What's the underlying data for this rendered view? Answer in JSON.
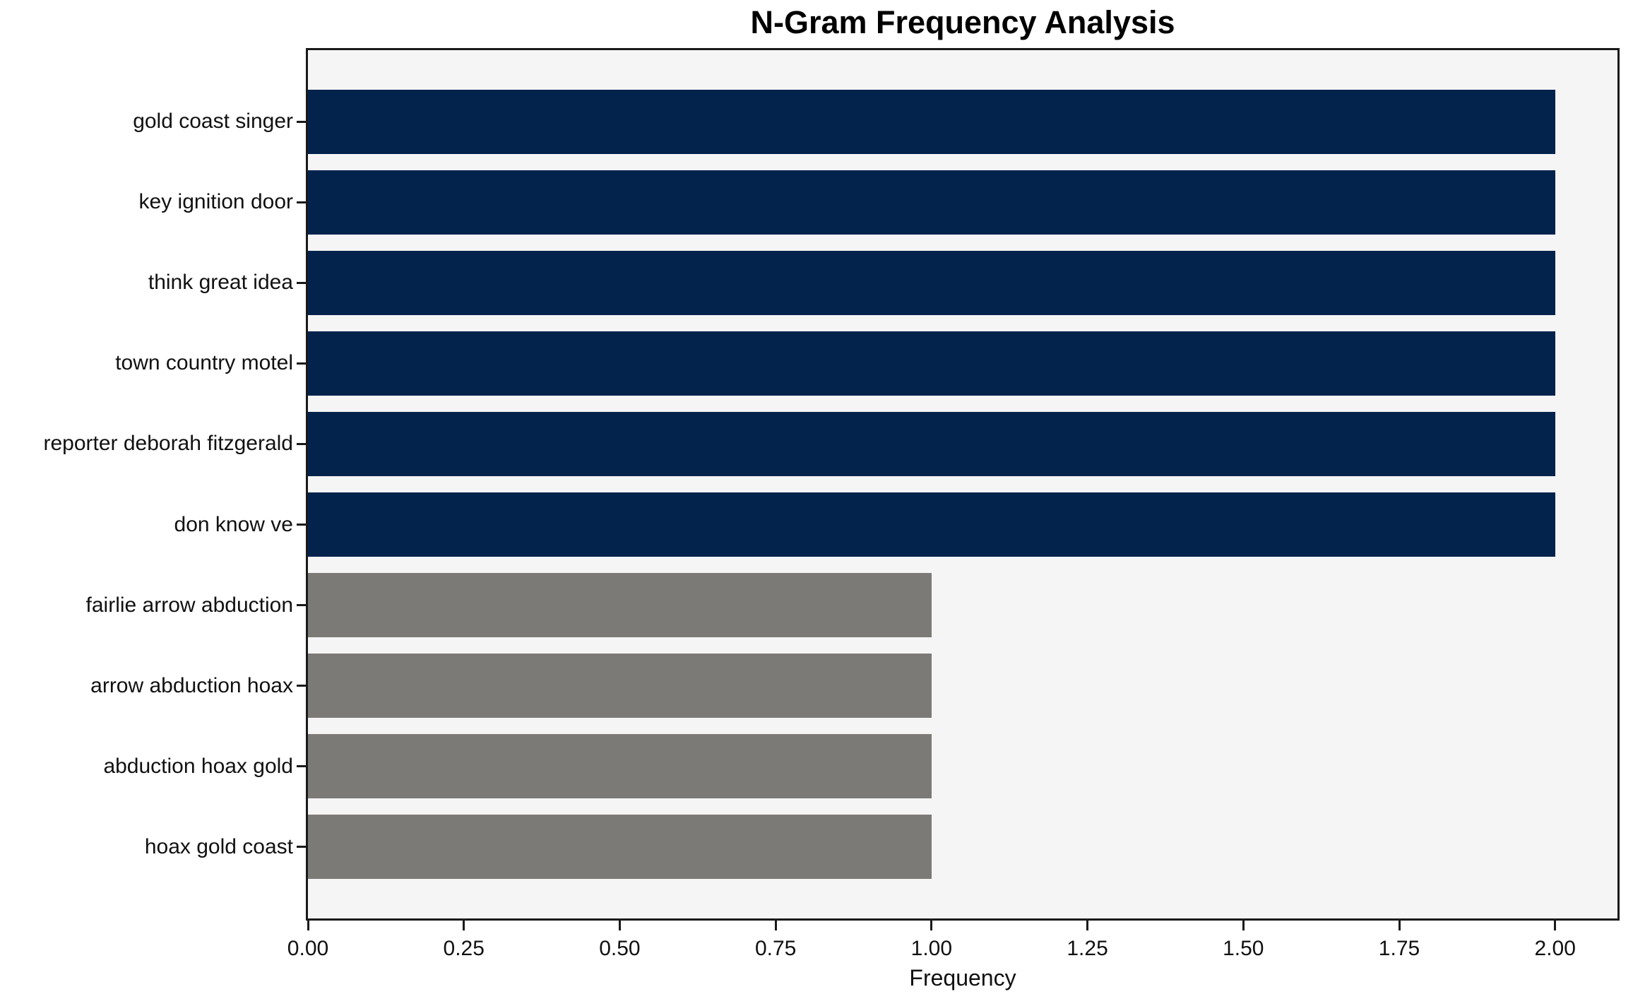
{
  "chart_data": {
    "type": "bar",
    "orientation": "horizontal",
    "title": "N-Gram Frequency Analysis",
    "xlabel": "Frequency",
    "ylabel": "",
    "categories": [
      "gold coast singer",
      "key ignition door",
      "think great idea",
      "town country motel",
      "reporter deborah fitzgerald",
      "don know ve",
      "fairlie arrow abduction",
      "arrow abduction hoax",
      "abduction hoax gold",
      "hoax gold coast"
    ],
    "values": [
      2,
      2,
      2,
      2,
      2,
      2,
      1,
      1,
      1,
      1
    ],
    "bar_colors": [
      "#03234d",
      "#03234d",
      "#03234d",
      "#03234d",
      "#03234d",
      "#03234d",
      "#7b7a76",
      "#7b7a76",
      "#7b7a76",
      "#7b7a76"
    ],
    "xlim": [
      0,
      2.1
    ],
    "xticks": [
      0,
      0.25,
      0.5,
      0.75,
      1.0,
      1.25,
      1.5,
      1.75,
      2.0
    ],
    "xtick_labels": [
      "0.00",
      "0.25",
      "0.50",
      "0.75",
      "1.00",
      "1.25",
      "1.50",
      "1.75",
      "2.00"
    ],
    "grid": false,
    "legend": null,
    "plot_background": "#f5f5f6",
    "spine_color": "#1a1a1a"
  }
}
